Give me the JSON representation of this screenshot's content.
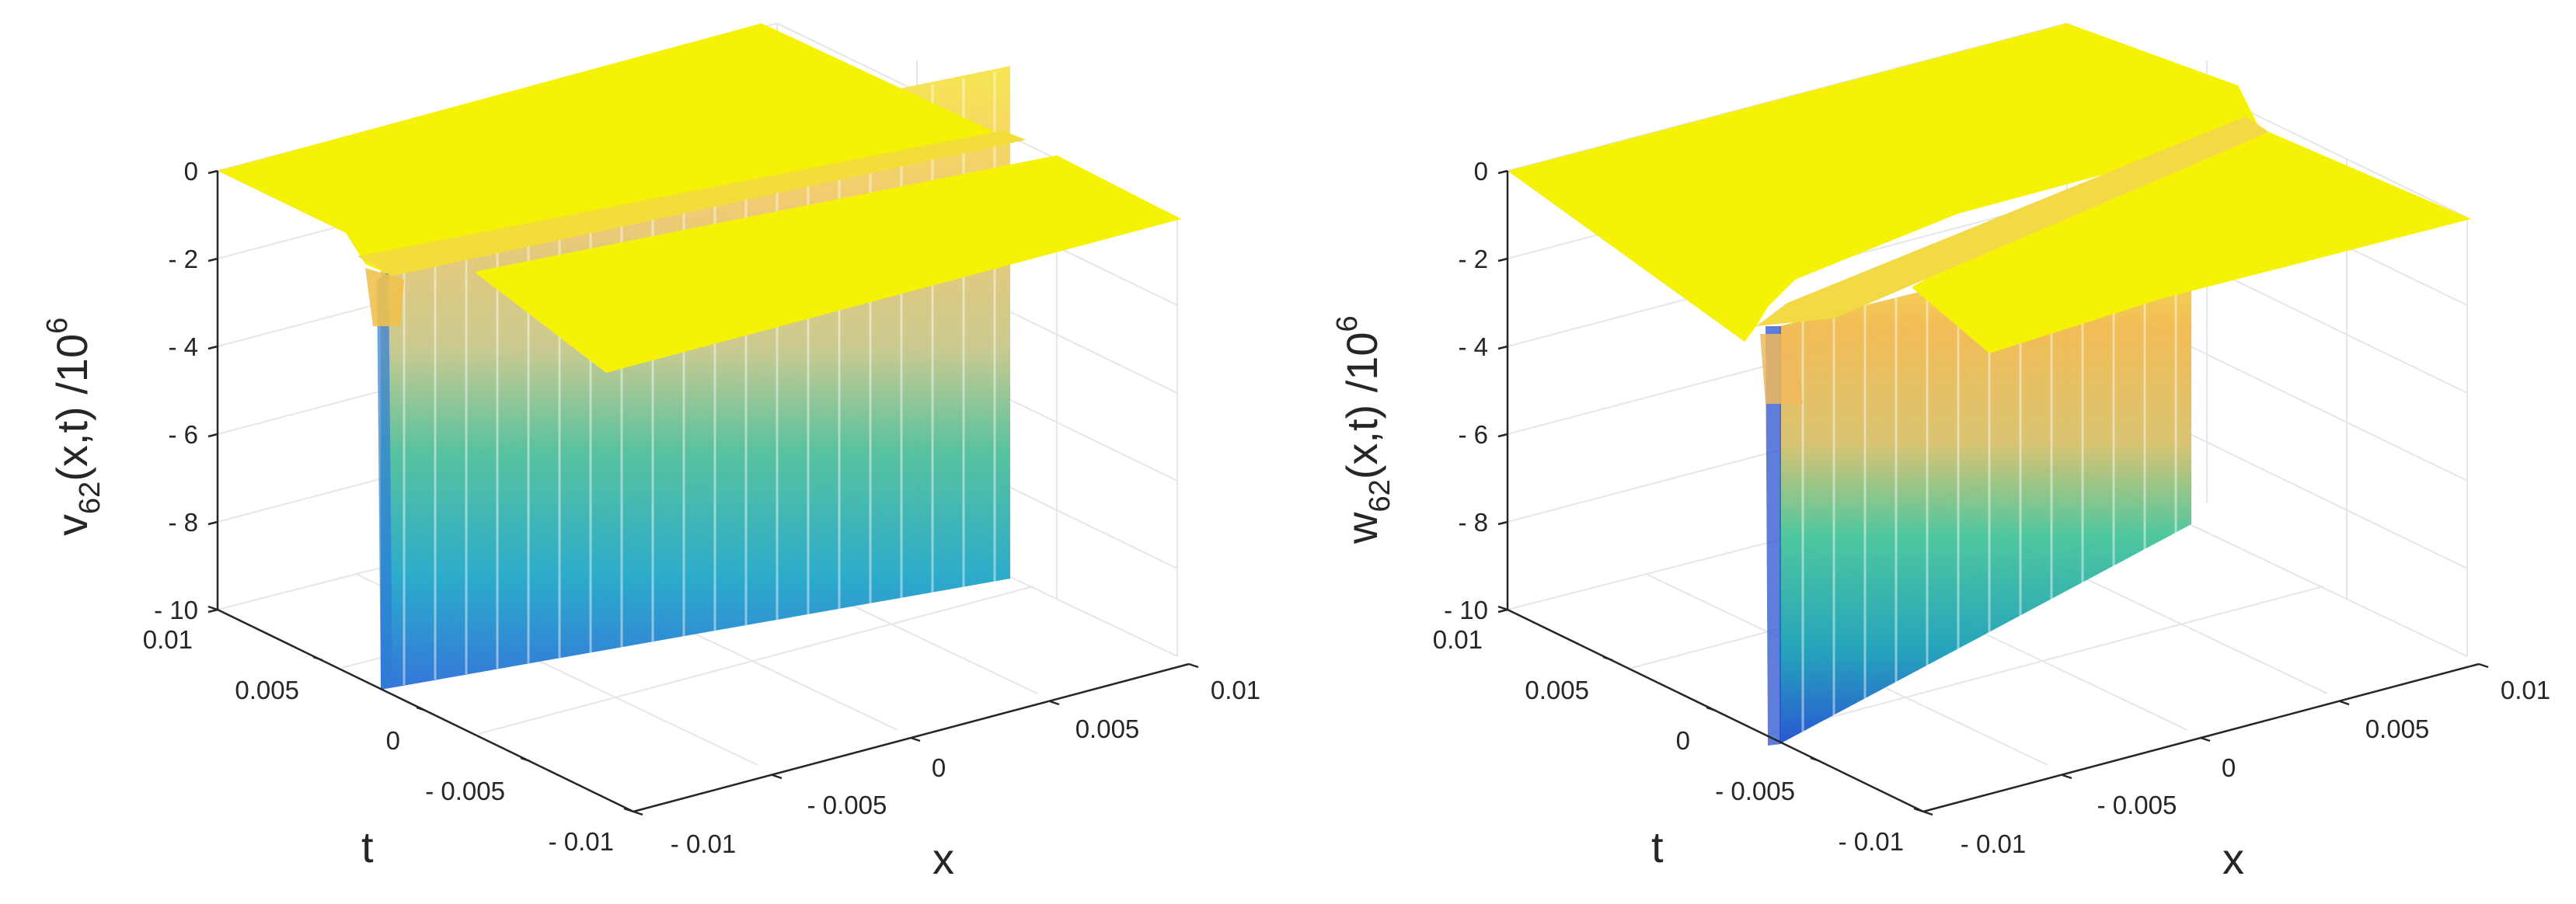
{
  "chart_data": [
    {
      "type": "surface",
      "zlabel": {
        "base": "v",
        "sub": "62",
        "mid": "(x,t) /10",
        "sup": "6"
      },
      "xlabel": "x",
      "ylabel": "t",
      "xlim": [
        -0.01,
        0.01
      ],
      "ylim": [
        -0.01,
        0.01
      ],
      "zlim": [
        -10,
        0
      ],
      "xticks": [
        "- 0.01",
        "- 0.005",
        "0",
        "0.005",
        "0.01"
      ],
      "yticks": [
        "- 0.01",
        "- 0.005",
        "0",
        "0.005",
        "0.01"
      ],
      "zticks": [
        "0",
        "- 2",
        "- 4",
        "- 6",
        "- 8",
        "- 10"
      ],
      "surface": {
        "plateau": 0,
        "trough_depth": -10,
        "trough_t_range": [
          -0.01,
          0.0
        ],
        "trough_x_at_t0": -0.006,
        "trough_x_at_tmin": 0.0035,
        "colormap": "parula"
      }
    },
    {
      "type": "surface",
      "zlabel": {
        "base": "w",
        "sub": "62",
        "mid": "(x,t) /10",
        "sup": "6"
      },
      "xlabel": "x",
      "ylabel": "t",
      "xlim": [
        -0.01,
        0.01
      ],
      "ylim": [
        -0.01,
        0.01
      ],
      "zlim": [
        -10,
        0
      ],
      "xticks": [
        "- 0.01",
        "- 0.005",
        "0",
        "0.005",
        "0.01"
      ],
      "yticks": [
        "- 0.01",
        "- 0.005",
        "0",
        "0.005",
        "0.01"
      ],
      "zticks": [
        "0",
        "- 2",
        "- 4",
        "- 6",
        "- 8",
        "- 10"
      ],
      "surface": {
        "plateau": 0,
        "trough_depth": -10,
        "trough_t_range": [
          -0.01,
          -0.0025
        ],
        "trough_x_at_t0": -0.0065,
        "trough_x_at_tmin": 0.0,
        "colormap": "parula"
      }
    }
  ]
}
